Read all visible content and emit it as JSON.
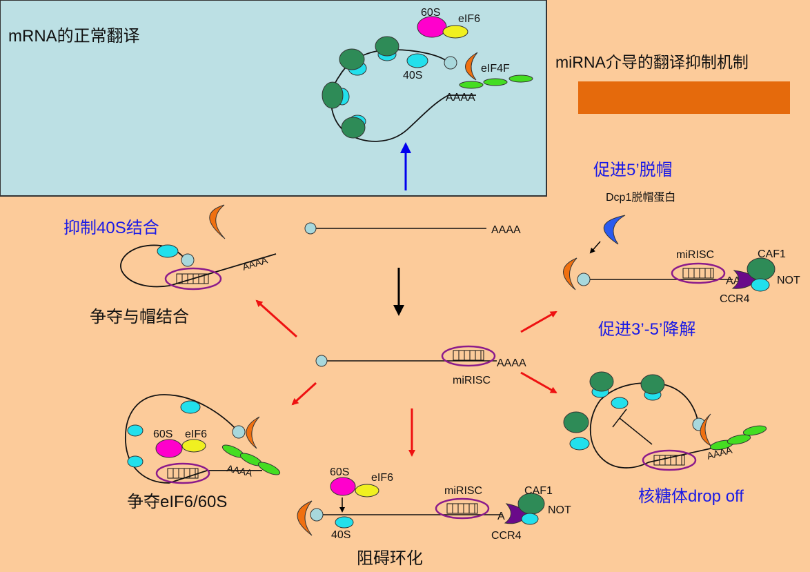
{
  "panel_normal": {
    "title": "mRNA的正常翻译",
    "labels": {
      "s60": "60S",
      "eif6": "eIF6",
      "s40": "40S",
      "eif4f": "eIF4F",
      "aaaa": "AAAA"
    }
  },
  "main_title": "miRNA介导的翻译抑制机制",
  "center": {
    "top_polya": "AAAA",
    "mid_polya": "AAAA",
    "mid_label": "miRISC"
  },
  "upper_left": {
    "title": "抑制40S结合",
    "caption": "争夺与帽结合",
    "polya": "AAAA"
  },
  "upper_right": {
    "title": "促进5’脱帽",
    "subtitle": "Dcp1脱帽蛋白",
    "mirisc": "miRISC",
    "caf1": "CAF1",
    "not": "NOT",
    "ccr4": "CCR4",
    "aa": "AA",
    "caption": "促进3’-5’降解"
  },
  "lower_left": {
    "s60": "60S",
    "eif6": "eIF6",
    "polya": "AAAA",
    "caption": "争夺eIF6/60S"
  },
  "lower_center": {
    "s60": "60S",
    "eif6": "eIF6",
    "s40": "40S",
    "mirisc": "miRISC",
    "caf1": "CAF1",
    "not": "NOT",
    "ccr4": "CCR4",
    "aa": "A",
    "caption": "阻碍环化"
  },
  "lower_right": {
    "polya": "AAAA",
    "caption": "核糖体drop off"
  },
  "colors": {
    "background": "#FCCB9A",
    "panel": "#BCE0E4",
    "ribosome_large": "#2E8B57",
    "ribosome_small": "#22E0EC",
    "cap": "#A8D8DC",
    "eif4e": "#F07010",
    "eif4g": "#44DD22",
    "s60": "#FF00CC",
    "eif6": "#F0F020",
    "mirisc_ring": "#8B1A8B",
    "ccr4_purple": "#6A0A8A",
    "dcp1": "#2A5AEE",
    "red_arrow": "#EE1111",
    "blue_arrow": "#0000EE",
    "bar": "#E56A0C"
  }
}
